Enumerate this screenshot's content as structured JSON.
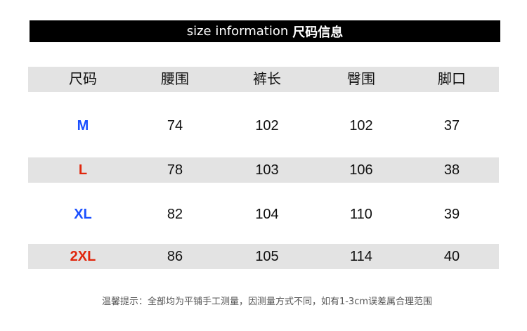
{
  "title": {
    "en": "size information",
    "zh": "尺码信息"
  },
  "table": {
    "headers": [
      "尺码",
      "腰围",
      "裤长",
      "臀围",
      "脚口"
    ],
    "rows": [
      {
        "size": "M",
        "waist": "74",
        "length": "102",
        "hip": "102",
        "hem": "37",
        "color": "#1a4fff"
      },
      {
        "size": "L",
        "waist": "78",
        "length": "103",
        "hip": "106",
        "hem": "38",
        "color": "#e0260c"
      },
      {
        "size": "XL",
        "waist": "82",
        "length": "104",
        "hip": "110",
        "hem": "39",
        "color": "#1a4fff"
      },
      {
        "size": "2XL",
        "waist": "86",
        "length": "105",
        "hip": "114",
        "hem": "40",
        "color": "#e0260c"
      }
    ]
  },
  "note": "温馨提示：全部均为平铺手工测量，因测量方式不同，如有1-3cm误差属合理范围"
}
